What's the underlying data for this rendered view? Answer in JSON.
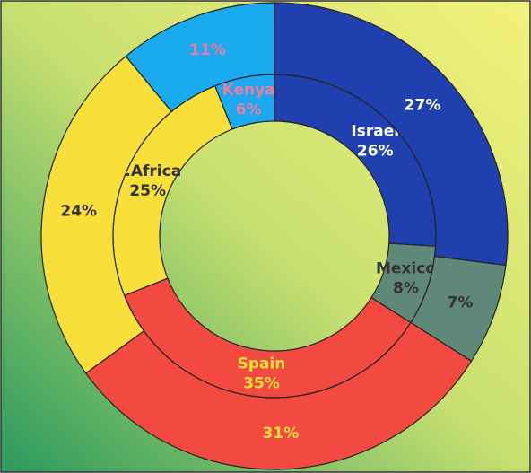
{
  "chart_data": {
    "type": "donut",
    "categories": [
      "Israel",
      "Mexico",
      "Spain",
      "S.Africa",
      "Kenya"
    ],
    "colors": [
      "#2040b0",
      "#5f8878",
      "#f24a40",
      "#f8df3a",
      "#19aaf0"
    ],
    "series": [
      {
        "values": [
          26,
          8,
          35,
          25,
          6
        ],
        "value_labels": [
          "26%",
          "8%",
          "35%",
          "25%",
          "6%"
        ]
      },
      {
        "values": [
          27,
          7,
          31,
          24,
          11
        ],
        "value_labels": [
          "27%",
          "7%",
          "31%",
          "24%",
          "11%"
        ]
      }
    ]
  }
}
